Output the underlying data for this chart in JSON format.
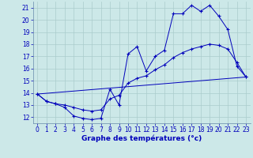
{
  "xlabel": "Graphe des températures (°c)",
  "xlim": [
    -0.5,
    23.5
  ],
  "ylim": [
    11.5,
    21.5
  ],
  "xticks": [
    0,
    1,
    2,
    3,
    4,
    5,
    6,
    7,
    8,
    9,
    10,
    11,
    12,
    13,
    14,
    15,
    16,
    17,
    18,
    19,
    20,
    21,
    22,
    23
  ],
  "yticks": [
    12,
    13,
    14,
    15,
    16,
    17,
    18,
    19,
    20,
    21
  ],
  "bg_color": "#cce8e8",
  "line_color": "#0000bb",
  "line1_x": [
    0,
    1,
    2,
    3,
    4,
    5,
    6,
    7,
    8,
    9,
    10,
    11,
    12,
    13,
    14,
    15,
    16,
    17,
    18,
    19,
    20,
    21,
    22,
    23
  ],
  "line1_y": [
    13.9,
    13.3,
    13.1,
    12.8,
    12.1,
    11.9,
    11.8,
    11.9,
    14.3,
    13.0,
    17.2,
    17.8,
    15.8,
    17.0,
    17.5,
    20.5,
    20.5,
    21.2,
    20.7,
    21.2,
    20.3,
    19.2,
    16.2,
    15.3
  ],
  "line2_x": [
    0,
    1,
    2,
    3,
    4,
    5,
    6,
    7,
    8,
    9,
    10,
    11,
    12,
    13,
    14,
    15,
    16,
    17,
    18,
    19,
    20,
    21,
    22,
    23
  ],
  "line2_y": [
    13.9,
    13.3,
    13.1,
    13.0,
    12.8,
    12.6,
    12.5,
    12.6,
    13.5,
    13.8,
    14.8,
    15.2,
    15.4,
    15.9,
    16.3,
    16.9,
    17.3,
    17.6,
    17.8,
    18.0,
    17.9,
    17.6,
    16.5,
    15.3
  ],
  "line3_x": [
    0,
    23
  ],
  "line3_y": [
    13.9,
    15.3
  ],
  "grid_color": "#aacccc",
  "tick_fontsize": 5.5,
  "xlabel_fontsize": 6.5
}
